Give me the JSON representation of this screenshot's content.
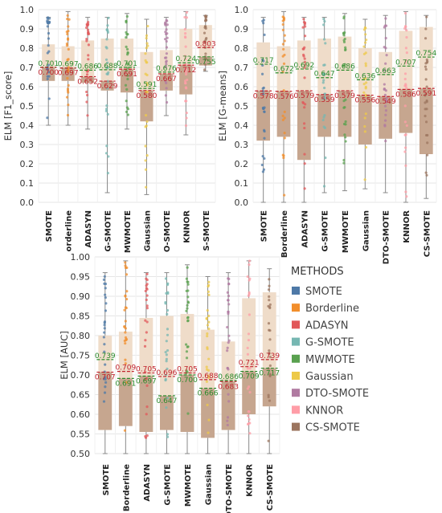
{
  "legend": {
    "title": "METHODS",
    "items": [
      {
        "label": "SMOTE",
        "color": "#4e79a7"
      },
      {
        "label": "Borderline",
        "color": "#f28e2b"
      },
      {
        "label": "ADASYN",
        "color": "#e15759"
      },
      {
        "label": "G-SMOTE",
        "color": "#76b7b2"
      },
      {
        "label": "MWMOTE",
        "color": "#59a14f"
      },
      {
        "label": "Gaussian",
        "color": "#edc948"
      },
      {
        "label": "DTO-SMOTE",
        "color": "#b07aa1"
      },
      {
        "label": "KNNOR",
        "color": "#ff9da7"
      },
      {
        "label": "CS-SMOTE",
        "color": "#9c755f"
      }
    ]
  },
  "chart_data": [
    {
      "type": "box",
      "ylabel": "ELM [F1_score]",
      "ylim": [
        0,
        1
      ],
      "yticks": [
        0.0,
        0.1,
        0.2,
        0.3,
        0.4,
        0.5,
        0.6,
        0.7,
        0.8,
        0.9,
        1.0
      ],
      "categories": [
        "SMOTE",
        "orderline",
        "ADASYN",
        "G-SMOTE",
        "MWMOTE",
        "Gaussian",
        "O-SMOTE",
        "KNNOR",
        "S-SMOTE"
      ],
      "boxes": [
        {
          "min": 0.4,
          "q1": 0.63,
          "median": 0.7,
          "q3": 0.82,
          "max": 0.96
        },
        {
          "min": 0.4,
          "q1": 0.63,
          "median": 0.697,
          "q3": 0.81,
          "max": 0.99
        },
        {
          "min": 0.38,
          "q1": 0.62,
          "median": 0.652,
          "q3": 0.84,
          "max": 0.96
        },
        {
          "min": 0.05,
          "q1": 0.58,
          "median": 0.629,
          "q3": 0.85,
          "max": 0.96
        },
        {
          "min": 0.38,
          "q1": 0.57,
          "median": 0.691,
          "q3": 0.85,
          "max": 0.98
        },
        {
          "min": 0.04,
          "q1": 0.42,
          "median": 0.58,
          "q3": 0.78,
          "max": 0.95
        },
        {
          "min": 0.45,
          "q1": 0.58,
          "median": 0.667,
          "q3": 0.79,
          "max": 0.96
        },
        {
          "min": 0.35,
          "q1": 0.56,
          "median": 0.712,
          "q3": 0.9,
          "max": 0.99
        },
        {
          "min": 0.68,
          "q1": 0.71,
          "median": 0.755,
          "q3": 0.92,
          "max": 0.97
        }
      ],
      "red_values": [
        0.7,
        0.697,
        0.652,
        0.629,
        0.691,
        0.58,
        0.667,
        0.712,
        0.803
      ],
      "green_values": [
        0.701,
        0.697,
        0.686,
        0.688,
        0.701,
        0.591,
        0.676,
        0.724,
        0.755
      ],
      "red_labels": [
        "0.700",
        "0.697",
        "0.652",
        "0.629",
        "0.691",
        "0.580",
        "0.667",
        "0.712",
        "0.803"
      ],
      "green_labels": [
        "0.701",
        "0.697",
        "0.686",
        "0.688",
        "0.701",
        "0.591",
        "0.676",
        "0.724",
        "0.755"
      ]
    },
    {
      "type": "box",
      "ylabel": "ELM [G-means]",
      "ylim": [
        0,
        1
      ],
      "yticks": [
        0.0,
        0.1,
        0.2,
        0.3,
        0.4,
        0.5,
        0.6,
        0.7,
        0.8,
        0.9,
        1.0
      ],
      "categories": [
        "SMOTE",
        "Borderline",
        "ADASYN",
        "G-SMOTE",
        "MWMOTE",
        "Gaussian",
        "DTO-SMOTE",
        "KNNOR",
        "CS-SMOTE"
      ],
      "boxes": [
        {
          "min": 0.0,
          "q1": 0.32,
          "median": 0.578,
          "q3": 0.83,
          "max": 0.96
        },
        {
          "min": 0.0,
          "q1": 0.34,
          "median": 0.576,
          "q3": 0.81,
          "max": 0.99
        },
        {
          "min": 0.0,
          "q1": 0.22,
          "median": 0.579,
          "q3": 0.84,
          "max": 0.96
        },
        {
          "min": 0.05,
          "q1": 0.34,
          "median": 0.559,
          "q3": 0.85,
          "max": 0.96
        },
        {
          "min": 0.06,
          "q1": 0.34,
          "median": 0.579,
          "q3": 0.86,
          "max": 0.98
        },
        {
          "min": 0.07,
          "q1": 0.3,
          "median": 0.556,
          "q3": 0.8,
          "max": 0.95
        },
        {
          "min": 0.05,
          "q1": 0.33,
          "median": 0.549,
          "q3": 0.78,
          "max": 0.97
        },
        {
          "min": 0.0,
          "q1": 0.36,
          "median": 0.586,
          "q3": 0.89,
          "max": 0.99
        },
        {
          "min": 0.02,
          "q1": 0.25,
          "median": 0.591,
          "q3": 0.91,
          "max": 0.97
        }
      ],
      "red_values": [
        0.578,
        0.576,
        0.579,
        0.559,
        0.579,
        0.556,
        0.549,
        0.586,
        0.591
      ],
      "green_values": [
        0.717,
        0.672,
        0.692,
        0.647,
        0.686,
        0.636,
        0.663,
        0.707,
        0.754
      ],
      "red_labels": [
        "0.578",
        "0.576",
        "0.579",
        "0.559",
        "0.579",
        "0.556",
        "0.549",
        "0.586",
        "0.591"
      ],
      "green_labels": [
        "0.717",
        "0.672",
        "0.692",
        "0.647",
        "0.686",
        "0.636",
        "0.663",
        "0.707",
        "0.754"
      ]
    },
    {
      "type": "box",
      "ylabel": "ELM [AUC]",
      "ylim": [
        0.5,
        1.0
      ],
      "yticks": [
        0.5,
        0.55,
        0.6,
        0.65,
        0.7,
        0.75,
        0.8,
        0.85,
        0.9,
        0.95,
        1.0
      ],
      "categories": [
        "SMOTE",
        "Borderline",
        "ADASYN",
        "G-SMOTE",
        "MWMOTE",
        "Gaussian",
        "DTO-SMOTE",
        "KNNOR",
        "CS-SMOTE"
      ],
      "boxes": [
        {
          "min": 0.5,
          "q1": 0.56,
          "median": 0.707,
          "q3": 0.8,
          "max": 0.96
        },
        {
          "min": 0.5,
          "q1": 0.57,
          "median": 0.691,
          "q3": 0.81,
          "max": 0.99
        },
        {
          "min": 0.5,
          "q1": 0.555,
          "median": 0.697,
          "q3": 0.845,
          "max": 0.96
        },
        {
          "min": 0.5,
          "q1": 0.56,
          "median": 0.647,
          "q3": 0.85,
          "max": 0.96
        },
        {
          "min": 0.5,
          "q1": 0.555,
          "median": 0.7,
          "q3": 0.855,
          "max": 0.98
        },
        {
          "min": 0.5,
          "q1": 0.54,
          "median": 0.666,
          "q3": 0.815,
          "max": 0.95
        },
        {
          "min": 0.5,
          "q1": 0.56,
          "median": 0.683,
          "q3": 0.785,
          "max": 0.96
        },
        {
          "min": 0.5,
          "q1": 0.6,
          "median": 0.709,
          "q3": 0.895,
          "max": 0.99
        },
        {
          "min": 0.5,
          "q1": 0.62,
          "median": 0.717,
          "q3": 0.91,
          "max": 0.97
        }
      ],
      "red_values": [
        0.707,
        0.709,
        0.705,
        0.696,
        0.705,
        0.688,
        0.683,
        0.721,
        0.739
      ],
      "green_values": [
        0.739,
        0.691,
        0.697,
        0.647,
        0.7,
        0.666,
        0.686,
        0.709,
        0.717
      ],
      "red_labels": [
        "0.707",
        "0.709",
        "0.705",
        "0.696",
        "0.705",
        "0.688",
        "0.683",
        "0.721",
        "0.739"
      ],
      "green_labels": [
        "0.739",
        "0.691",
        "0.697",
        "0.647",
        "0.700",
        "0.666",
        "0.686",
        "0.709",
        "0.717"
      ]
    }
  ]
}
